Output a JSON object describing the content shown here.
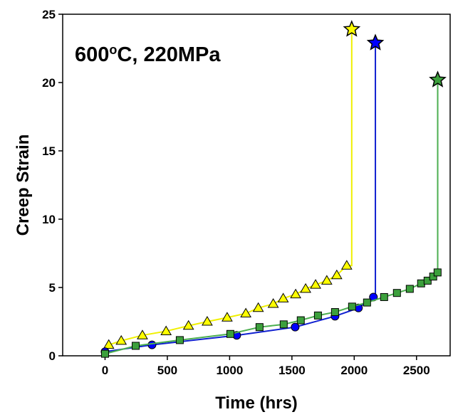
{
  "chart_data": {
    "type": "line",
    "annotation": [
      "600",
      "o",
      "C, 220MPa"
    ],
    "x_label": "Time (hrs)",
    "y_label": "Creep Strain",
    "xlim": [
      -340,
      2770
    ],
    "ylim": [
      0,
      25
    ],
    "xticks": [
      0,
      500,
      1000,
      1500,
      2000,
      2500
    ],
    "yticks": [
      0,
      5,
      10,
      15,
      20,
      25
    ],
    "series": [
      {
        "color": "#ffff00",
        "line_color": "#f0f000",
        "marker": "triangle",
        "x": [
          30,
          130,
          300,
          490,
          670,
          820,
          980,
          1130,
          1230,
          1350,
          1430,
          1530,
          1610,
          1690,
          1780,
          1860,
          1940
        ],
        "values": [
          0.8,
          1.1,
          1.5,
          1.8,
          2.2,
          2.5,
          2.8,
          3.1,
          3.5,
          3.8,
          4.2,
          4.5,
          4.9,
          5.2,
          5.5,
          5.9,
          6.6
        ],
        "rupture_x": 1980,
        "rupture_y": 23.9
      },
      {
        "color": "#0000ff",
        "line_color": "#1020d0",
        "marker": "circle",
        "x": [
          0,
          377,
          1057,
          1526,
          1846,
          2034,
          2154
        ],
        "values": [
          0.3,
          0.8,
          1.5,
          2.1,
          2.9,
          3.5,
          4.3
        ],
        "rupture_x": 2170,
        "rupture_y": 22.9
      },
      {
        "color": "#3ca03c",
        "line_color": "#4caf50",
        "marker": "square",
        "x": [
          0,
          246,
          600,
          1006,
          1240,
          1434,
          1571,
          1709,
          1846,
          1983,
          2103,
          2240,
          2343,
          2446,
          2537,
          2589,
          2634,
          2669
        ],
        "values": [
          0.15,
          0.73,
          1.15,
          1.6,
          2.1,
          2.3,
          2.6,
          2.95,
          3.2,
          3.6,
          3.9,
          4.3,
          4.6,
          4.9,
          5.3,
          5.5,
          5.8,
          6.1
        ],
        "rupture_x": 2670,
        "rupture_y": 20.2
      }
    ]
  }
}
